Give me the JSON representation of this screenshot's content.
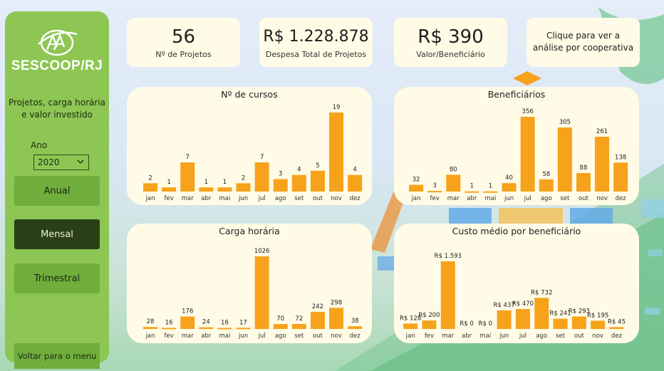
{
  "sidebar": {
    "brand": "SESCOOP/RJ",
    "subtitle": "Projetos, carga horária e valor investido",
    "year_label": "Ano",
    "year_value": "2020",
    "buttons": {
      "annual": "Anual",
      "monthly": "Mensal",
      "quarterly": "Trimestral"
    },
    "back": "Voltar para o menu"
  },
  "kpis": {
    "projects": {
      "value": "56",
      "label": "Nº de Projetos"
    },
    "expense": {
      "value": "R$ 1.228.878",
      "label": "Despesa Total de Projetos"
    },
    "per_beneficiary": {
      "value": "R$ 390",
      "label": "Valor/Beneficiário"
    }
  },
  "link_card": {
    "line1": "Clique para ver a",
    "line2": "análise por cooperativa"
  },
  "colors": {
    "bar": "#f7a21b",
    "card": "#fffbe6",
    "sidebar": "#8dc653",
    "active_button": "#2a3f16"
  },
  "chart_data": [
    {
      "id": "cursos",
      "type": "bar",
      "title": "Nº de cursos",
      "categories": [
        "jan",
        "fev",
        "mar",
        "abr",
        "mai",
        "jun",
        "jul",
        "ago",
        "set",
        "out",
        "nov",
        "dez"
      ],
      "values": [
        2,
        1,
        7,
        1,
        1,
        2,
        7,
        3,
        4,
        5,
        19,
        4
      ],
      "labels": [
        "2",
        "1",
        "7",
        "1",
        "1",
        "2",
        "7",
        "3",
        "4",
        "5",
        "19",
        "4"
      ]
    },
    {
      "id": "beneficiarios",
      "type": "bar",
      "title": "Beneficiários",
      "categories": [
        "jan",
        "fev",
        "mar",
        "abr",
        "mai",
        "jun",
        "jul",
        "ago",
        "set",
        "out",
        "nov",
        "dez"
      ],
      "values": [
        32,
        3,
        80,
        1,
        1,
        40,
        356,
        58,
        305,
        88,
        261,
        138
      ],
      "labels": [
        "32",
        "3",
        "80",
        "1",
        "1",
        "40",
        "356",
        "58",
        "305",
        "88",
        "261",
        "138"
      ]
    },
    {
      "id": "carga",
      "type": "bar",
      "title": "Carga horária",
      "categories": [
        "jan",
        "fev",
        "mar",
        "abr",
        "mai",
        "jun",
        "jul",
        "ago",
        "set",
        "out",
        "nov",
        "dez"
      ],
      "values": [
        28,
        16,
        176,
        24,
        16,
        17,
        1026,
        70,
        72,
        242,
        298,
        38
      ],
      "labels": [
        "28",
        "16",
        "176",
        "24",
        "16",
        "17",
        "1026",
        "70",
        "72",
        "242",
        "298",
        "38"
      ]
    },
    {
      "id": "custo",
      "type": "bar",
      "title": "Custo médio por beneficiário",
      "categories": [
        "jan",
        "fev",
        "mar",
        "abr",
        "mai",
        "jun",
        "jul",
        "ago",
        "set",
        "out",
        "nov",
        "dez"
      ],
      "values": [
        128,
        200,
        1593,
        0,
        0,
        437,
        470,
        732,
        241,
        293,
        195,
        45
      ],
      "labels": [
        "R$ 128",
        "R$ 200",
        "R$ 1.593",
        "R$ 0",
        "R$ 0",
        "R$ 437",
        "R$ 470",
        "R$ 732",
        "R$ 241",
        "R$ 293",
        "R$ 195",
        "R$ 45"
      ]
    }
  ]
}
